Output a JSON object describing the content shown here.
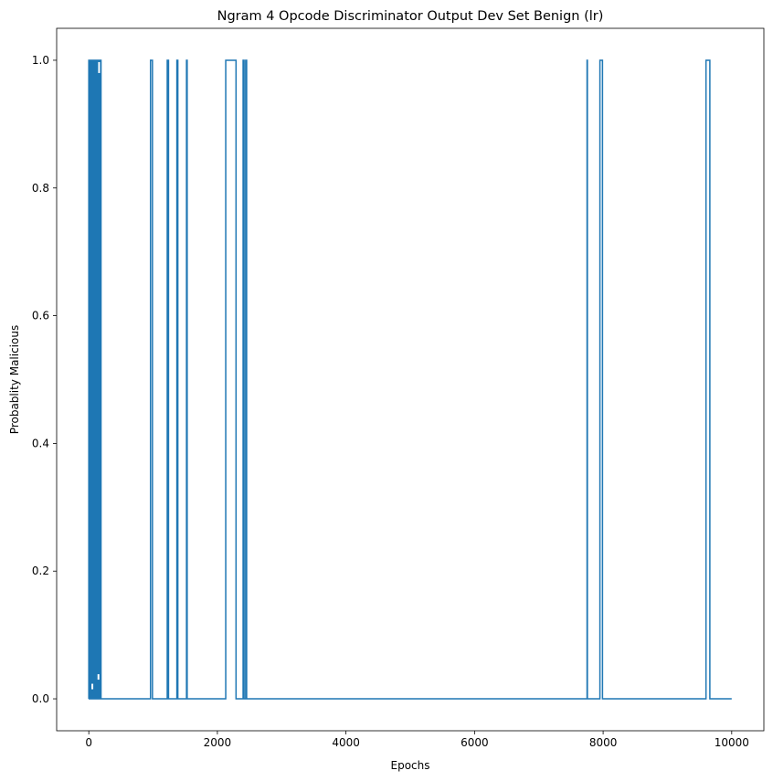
{
  "chart_data": {
    "type": "line",
    "title": "Ngram 4 Opcode Discriminator Output Dev Set Benign (lr)",
    "xlabel": "Epochs",
    "ylabel": "Probablity Malicious",
    "xlim": [
      -500,
      10500
    ],
    "ylim": [
      -0.05,
      1.05
    ],
    "xticks": [
      0,
      2000,
      4000,
      6000,
      8000,
      10000
    ],
    "xtick_labels": [
      "0",
      "2000",
      "4000",
      "6000",
      "8000",
      "10000"
    ],
    "yticks": [
      0.0,
      0.2,
      0.4,
      0.6,
      0.8,
      1.0
    ],
    "ytick_labels": [
      "0.0",
      "0.2",
      "0.4",
      "0.6",
      "0.8",
      "1.0"
    ],
    "grid": false,
    "legend": "none",
    "series": [
      {
        "color": "#1f77b4",
        "high_intervals": [
          [
            0,
            8
          ],
          [
            12,
            20
          ],
          [
            24,
            30
          ],
          [
            34,
            42
          ],
          [
            46,
            52
          ],
          [
            55,
            62
          ],
          [
            66,
            72
          ],
          [
            76,
            84
          ],
          [
            88,
            94
          ],
          [
            98,
            104
          ],
          [
            108,
            116
          ],
          [
            120,
            126
          ],
          [
            130,
            138
          ],
          [
            142,
            148
          ],
          [
            150,
            156
          ],
          [
            162,
            168
          ],
          [
            172,
            180
          ],
          [
            184,
            190
          ],
          [
            960,
            990
          ],
          [
            1220,
            1240
          ],
          [
            1370,
            1385
          ],
          [
            1520,
            1530
          ],
          [
            2130,
            2290
          ],
          [
            2400,
            2415
          ],
          [
            2440,
            2455
          ],
          [
            7750,
            7755
          ],
          [
            7950,
            7990
          ],
          [
            9600,
            9660
          ]
        ],
        "x_end": 10000,
        "low_value": 0.0,
        "high_value": 1.0
      }
    ]
  }
}
